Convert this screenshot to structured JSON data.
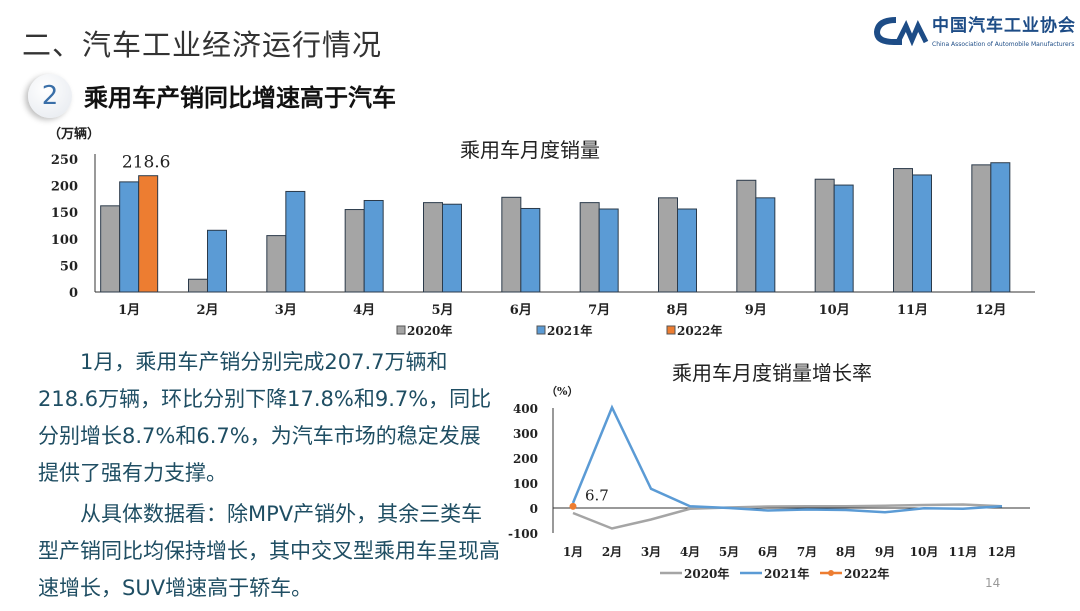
{
  "header": {
    "section_title": "二、汽车工业经济运行情况",
    "badge_number": "2",
    "subtitle": "乘用车产销同比增速高于汽车",
    "logo_cn": "中国汽车工业协会",
    "logo_en": "China Association of Automobile Manufacturers"
  },
  "body": {
    "paragraphs": [
      "1月，乘用车产销分别完成207.7万辆和218.6万辆，环比分别下降17.8%和9.7%，同比分别增长8.7%和6.7%，为汽车市场的稳定发展提供了强有力支撑。",
      "从具体数据看：除MPV产销外，其余三类车型产销同比均保持增长，其中交叉型乘用车呈现高速增长，SUV增速高于轿车。"
    ]
  },
  "page_number": "14",
  "chart_data": [
    {
      "type": "bar",
      "title": "乘用车月度销量",
      "ylabel": "（万辆）",
      "xlabel": "",
      "ylim": [
        0,
        250
      ],
      "yticks": [
        0,
        50,
        100,
        150,
        200,
        250
      ],
      "categories": [
        "1月",
        "2月",
        "3月",
        "4月",
        "5月",
        "6月",
        "7月",
        "8月",
        "9月",
        "10月",
        "11月",
        "12月"
      ],
      "series": [
        {
          "name": "2020年",
          "color": "#a5a5a5",
          "values": [
            162,
            24,
            106,
            155,
            168,
            178,
            168,
            177,
            210,
            212,
            232,
            239
          ]
        },
        {
          "name": "2021年",
          "color": "#5b9bd5",
          "values": [
            207,
            116,
            189,
            172,
            165,
            157,
            156,
            156,
            177,
            201,
            220,
            243
          ]
        },
        {
          "name": "2022年",
          "color": "#ed7d31",
          "values": [
            218.6,
            null,
            null,
            null,
            null,
            null,
            null,
            null,
            null,
            null,
            null,
            null
          ]
        }
      ],
      "data_labels": [
        {
          "series": "2022年",
          "category": "1月",
          "text": "218.6"
        }
      ],
      "grid": false,
      "legend": "bottom"
    },
    {
      "type": "line",
      "title": "乘用车月度销量增长率",
      "ylabel": "（%）",
      "xlabel": "",
      "ylim": [
        -100,
        400
      ],
      "yticks": [
        -100,
        0,
        100,
        200,
        300,
        400
      ],
      "categories": [
        "1月",
        "2月",
        "3月",
        "4月",
        "5月",
        "6月",
        "7月",
        "8月",
        "9月",
        "10月",
        "11月",
        "12月"
      ],
      "series": [
        {
          "name": "2020年",
          "color": "#a5a5a5",
          "values": [
            -20,
            -82,
            -46,
            -3,
            2,
            6,
            7,
            7,
            9,
            12,
            14,
            7
          ]
        },
        {
          "name": "2021年",
          "color": "#5b9bd5",
          "values": [
            20,
            402,
            77,
            7,
            0,
            -10,
            -6,
            -8,
            -17,
            -1,
            -3,
            7
          ]
        },
        {
          "name": "2022年",
          "color": "#ed7d31",
          "values": [
            6.7,
            null,
            null,
            null,
            null,
            null,
            null,
            null,
            null,
            null,
            null,
            null
          ]
        }
      ],
      "data_labels": [
        {
          "series": "2022年",
          "category": "1月",
          "text": "6.7"
        }
      ],
      "grid": false,
      "legend": "bottom"
    }
  ]
}
